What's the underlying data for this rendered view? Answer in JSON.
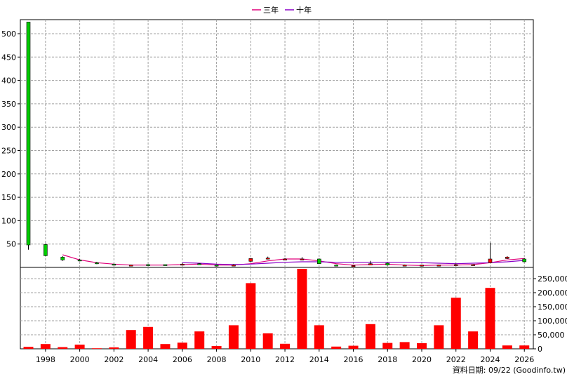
{
  "legend": {
    "items": [
      {
        "label": "三年",
        "color": "#e0007a"
      },
      {
        "label": "十年",
        "color": "#8a00c8"
      }
    ]
  },
  "footer": {
    "text": "資料日期: 09/22  (Goodinfo.tw)"
  },
  "chart_data": [
    {
      "type": "candlestick",
      "title": "",
      "ylim": [
        0,
        530
      ],
      "yticks": [
        50,
        100,
        150,
        200,
        250,
        300,
        350,
        400,
        450,
        500
      ],
      "grid": true,
      "x": [
        1997,
        1998,
        1999,
        2000,
        2001,
        2002,
        2003,
        2004,
        2005,
        2006,
        2007,
        2008,
        2009,
        2010,
        2011,
        2012,
        2013,
        2014,
        2015,
        2016,
        2017,
        2018,
        2019,
        2020,
        2021,
        2022,
        2023,
        2024,
        2025,
        2026
      ],
      "candles": [
        {
          "x": 1997,
          "open": 525,
          "close": 48,
          "high": 525,
          "low": 38
        },
        {
          "x": 1998,
          "open": 49,
          "close": 25,
          "high": 51,
          "low": 24
        },
        {
          "x": 1999,
          "open": 22,
          "close": 16,
          "high": 24,
          "low": 14
        },
        {
          "x": 2000,
          "open": 16,
          "close": 15,
          "high": 18,
          "low": 13
        },
        {
          "x": 2001,
          "open": 10,
          "close": 9,
          "high": 12,
          "low": 7
        },
        {
          "x": 2002,
          "open": 7,
          "close": 6,
          "high": 8,
          "low": 5
        },
        {
          "x": 2003,
          "open": 5,
          "close": 5,
          "high": 6,
          "low": 4
        },
        {
          "x": 2004,
          "open": 6,
          "close": 5,
          "high": 7,
          "low": 4
        },
        {
          "x": 2005,
          "open": 6,
          "close": 5,
          "high": 6,
          "low": 4
        },
        {
          "x": 2006,
          "open": 7,
          "close": 7,
          "high": 9,
          "low": 6
        },
        {
          "x": 2007,
          "open": 8,
          "close": 7,
          "high": 9,
          "low": 6
        },
        {
          "x": 2008,
          "open": 5,
          "close": 4,
          "high": 6,
          "low": 3
        },
        {
          "x": 2009,
          "open": 4,
          "close": 5,
          "high": 7,
          "low": 3
        },
        {
          "x": 2010,
          "open": 13,
          "close": 19,
          "high": 20,
          "low": 12
        },
        {
          "x": 2011,
          "open": 18,
          "close": 20,
          "high": 23,
          "low": 17
        },
        {
          "x": 2012,
          "open": 18,
          "close": 18,
          "high": 20,
          "low": 16
        },
        {
          "x": 2013,
          "open": 18,
          "close": 18,
          "high": 22,
          "low": 15
        },
        {
          "x": 2014,
          "open": 18,
          "close": 8,
          "high": 19,
          "low": 7
        },
        {
          "x": 2015,
          "open": 5,
          "close": 4,
          "high": 6,
          "low": 3
        },
        {
          "x": 2016,
          "open": 4,
          "close": 4,
          "high": 5,
          "low": 3
        },
        {
          "x": 2017,
          "open": 5,
          "close": 8,
          "high": 14,
          "low": 5
        },
        {
          "x": 2018,
          "open": 9,
          "close": 5,
          "high": 10,
          "low": 4
        },
        {
          "x": 2019,
          "open": 5,
          "close": 5,
          "high": 6,
          "low": 4
        },
        {
          "x": 2020,
          "open": 5,
          "close": 5,
          "high": 6,
          "low": 4
        },
        {
          "x": 2021,
          "open": 5,
          "close": 5,
          "high": 6,
          "low": 4
        },
        {
          "x": 2022,
          "open": 6,
          "close": 6,
          "high": 8,
          "low": 5
        },
        {
          "x": 2023,
          "open": 6,
          "close": 6,
          "high": 7,
          "low": 5
        },
        {
          "x": 2024,
          "open": 10,
          "close": 18,
          "high": 53,
          "low": 9
        },
        {
          "x": 2025,
          "open": 19,
          "close": 22,
          "high": 24,
          "low": 18
        },
        {
          "x": 2026,
          "open": 18,
          "close": 12,
          "high": 20,
          "low": 11
        }
      ],
      "series": [
        {
          "name": "三年",
          "color": "#e0007a",
          "x": [
            1999,
            2000,
            2001,
            2002,
            2003,
            2004,
            2005,
            2006,
            2007,
            2008,
            2009,
            2010,
            2011,
            2012,
            2013,
            2014,
            2015,
            2016,
            2017,
            2018,
            2019,
            2020,
            2021,
            2022,
            2023,
            2024,
            2025,
            2026
          ],
          "values": [
            27,
            16,
            10,
            7,
            5,
            5,
            5,
            6,
            7,
            5,
            5,
            8,
            14,
            18,
            18,
            14,
            8,
            5,
            6,
            7,
            5,
            4,
            5,
            5,
            6,
            10,
            16,
            19
          ]
        },
        {
          "name": "十年",
          "color": "#8a00c8",
          "x": [
            2006,
            2007,
            2008,
            2009,
            2010,
            2011,
            2012,
            2013,
            2014,
            2015,
            2016,
            2017,
            2018,
            2019,
            2020,
            2021,
            2022,
            2023,
            2024,
            2025,
            2026
          ],
          "values": [
            10,
            9,
            7,
            6,
            7,
            9,
            11,
            12,
            12,
            11,
            11,
            11,
            11,
            11,
            10,
            9,
            8,
            9,
            10,
            12,
            15
          ]
        }
      ]
    },
    {
      "type": "bar",
      "ylim": [
        0,
        290000
      ],
      "yticks": [
        0,
        50000,
        100000,
        150000,
        200000,
        250000
      ],
      "ytick_labels": [
        "0",
        "50,000",
        "100,000",
        "150,000",
        "200,000",
        "250,000"
      ],
      "grid": true,
      "color": "#ff0000",
      "x": [
        1997,
        1998,
        1999,
        2000,
        2001,
        2002,
        2003,
        2004,
        2005,
        2006,
        2007,
        2008,
        2009,
        2010,
        2011,
        2012,
        2013,
        2014,
        2015,
        2016,
        2017,
        2018,
        2019,
        2020,
        2021,
        2022,
        2023,
        2024,
        2025,
        2026
      ],
      "values": [
        7000,
        17000,
        6000,
        15000,
        2000,
        5000,
        67000,
        78000,
        17000,
        22000,
        62000,
        10000,
        84000,
        234000,
        55000,
        18000,
        285000,
        84000,
        8000,
        11000,
        88000,
        21000,
        24000,
        20000,
        84000,
        182000,
        62000,
        217000,
        12000,
        12000
      ],
      "xtick_values": [
        1998,
        2000,
        2002,
        2004,
        2006,
        2008,
        2010,
        2012,
        2014,
        2016,
        2018,
        2020,
        2022,
        2024,
        2026
      ],
      "xtick_labels": [
        "1998",
        "2000",
        "2002",
        "2004",
        "2006",
        "2008",
        "2010",
        "2012",
        "2014",
        "2016",
        "2018",
        "2020",
        "2022",
        "2024",
        "2026"
      ]
    }
  ]
}
